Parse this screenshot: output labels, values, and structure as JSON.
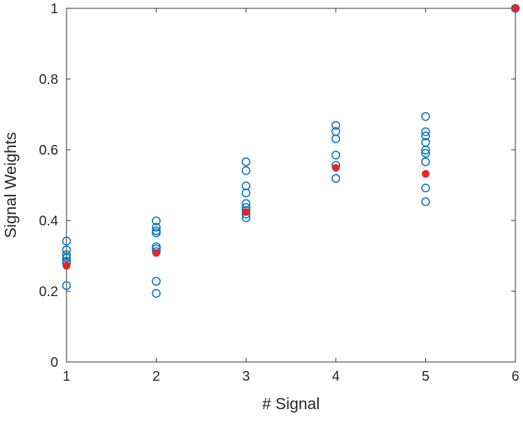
{
  "chart_data": {
    "type": "scatter",
    "title": "",
    "xlabel": "# Signal",
    "ylabel": "Signal Weights",
    "xlim": [
      1,
      6
    ],
    "ylim": [
      0,
      1
    ],
    "xticks": [
      "1",
      "2",
      "3",
      "4",
      "5",
      "6"
    ],
    "yticks": [
      "0",
      "0.2",
      "0.4",
      "0.6",
      "0.8",
      "1"
    ],
    "grid": false,
    "legend": "none",
    "series": [
      {
        "marker": "open-circle",
        "color": "#0072BD",
        "points": [
          [
            1,
            0.342
          ],
          [
            1,
            0.317
          ],
          [
            1,
            0.303
          ],
          [
            1,
            0.294
          ],
          [
            1,
            0.285
          ],
          [
            1,
            0.279
          ],
          [
            1,
            0.216
          ],
          [
            2,
            0.399
          ],
          [
            2,
            0.381
          ],
          [
            2,
            0.371
          ],
          [
            2,
            0.365
          ],
          [
            2,
            0.326
          ],
          [
            2,
            0.32
          ],
          [
            2,
            0.312
          ],
          [
            2,
            0.228
          ],
          [
            2,
            0.194
          ],
          [
            3,
            0.566
          ],
          [
            3,
            0.541
          ],
          [
            3,
            0.498
          ],
          [
            3,
            0.478
          ],
          [
            3,
            0.448
          ],
          [
            3,
            0.437
          ],
          [
            3,
            0.428
          ],
          [
            3,
            0.418
          ],
          [
            3,
            0.408
          ],
          [
            4,
            0.669
          ],
          [
            4,
            0.652
          ],
          [
            4,
            0.631
          ],
          [
            4,
            0.585
          ],
          [
            4,
            0.556
          ],
          [
            4,
            0.519
          ],
          [
            5,
            0.694
          ],
          [
            5,
            0.651
          ],
          [
            5,
            0.639
          ],
          [
            5,
            0.621
          ],
          [
            5,
            0.599
          ],
          [
            5,
            0.59
          ],
          [
            5,
            0.566
          ],
          [
            5,
            0.492
          ],
          [
            5,
            0.453
          ],
          [
            6,
            1.0
          ]
        ]
      },
      {
        "marker": "filled-circle",
        "color": "#E8232A",
        "points": [
          [
            1,
            0.272
          ],
          [
            2,
            0.308
          ],
          [
            3,
            0.424
          ],
          [
            4,
            0.549
          ],
          [
            5,
            0.532
          ],
          [
            6,
            1.0
          ]
        ]
      }
    ]
  }
}
